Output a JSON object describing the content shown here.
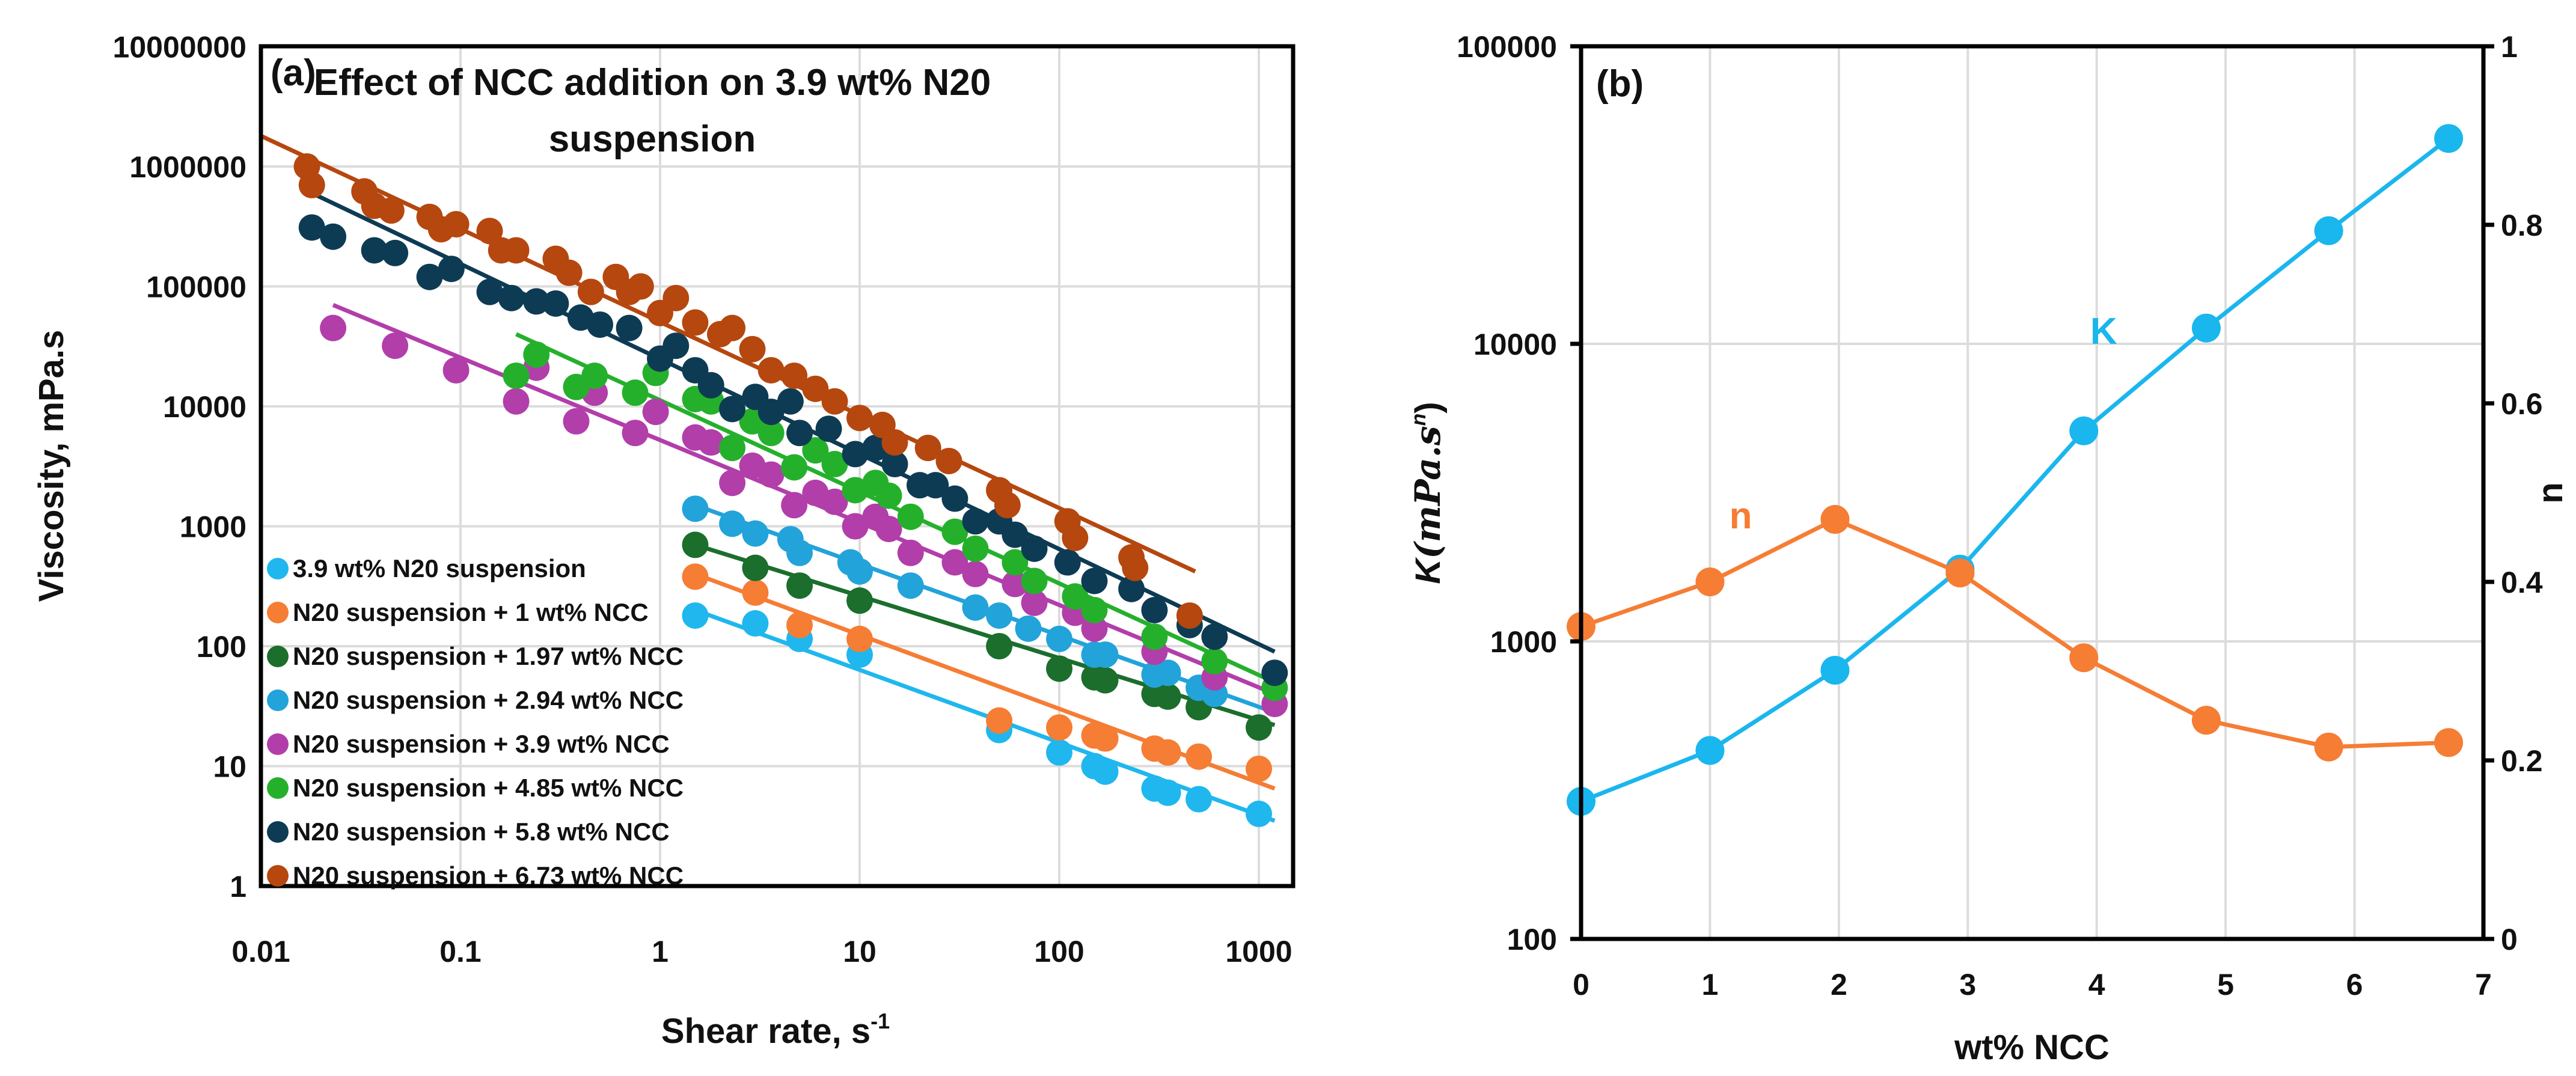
{
  "chart_data": [
    {
      "type": "scatter",
      "panel_label": "(a)",
      "title": [
        "Effect of NCC addition on 3.9 wt% N20",
        "suspension"
      ],
      "xlabel": "Shear rate, s",
      "xlabel_sup": "-1",
      "ylabel": "Viscosity, mPa.s",
      "xscale": "log",
      "yscale": "log",
      "xlim": [
        0.01,
        1500
      ],
      "ylim": [
        1,
        10000000
      ],
      "xticks": [
        "0.01",
        "0.1",
        "1",
        "10",
        "100",
        "1000"
      ],
      "xtick_values": [
        0.01,
        0.1,
        1,
        10,
        100,
        1000
      ],
      "yticks": [
        "1",
        "10",
        "100",
        "1000",
        "10000",
        "100000",
        "1000000",
        "10000000"
      ],
      "ytick_values": [
        1,
        10,
        100,
        1000,
        10000,
        100000,
        1000000,
        10000000
      ],
      "grid": true,
      "legend_position": "bottom-left",
      "series": [
        {
          "name": "3.9 wt% N20 suspension",
          "color": "#1fb7ee",
          "x": [
            1.5,
            3,
            5,
            10,
            50,
            100,
            150,
            170,
            300,
            350,
            500,
            1000
          ],
          "y": [
            180,
            155,
            115,
            85,
            20,
            13,
            10,
            9,
            6.5,
            6,
            5.3,
            4
          ],
          "fit": [
            [
              1.5,
              200
            ],
            [
              1200,
              3.5
            ]
          ]
        },
        {
          "name": "N20 suspension + 1 wt% NCC",
          "color": "#f57d34",
          "x": [
            1.5,
            3,
            5,
            10,
            50,
            100,
            150,
            170,
            300,
            350,
            500,
            1000
          ],
          "y": [
            380,
            280,
            150,
            115,
            24,
            21,
            18,
            17,
            14,
            13,
            12,
            9.5
          ],
          "fit": [
            [
              1.5,
              400
            ],
            [
              1200,
              6.5
            ]
          ]
        },
        {
          "name": "N20 suspension + 1.97 wt% NCC",
          "color": "#1b6e2c",
          "x": [
            1.5,
            3,
            5,
            10,
            50,
            100,
            150,
            170,
            300,
            350,
            500,
            1000
          ],
          "y": [
            700,
            450,
            320,
            240,
            100,
            65,
            55,
            52,
            40,
            38,
            31,
            21
          ],
          "fit": [
            [
              1.5,
              700
            ],
            [
              1200,
              22
            ]
          ]
        },
        {
          "name": "N20 suspension + 2.94 wt% NCC",
          "color": "#22a3da",
          "x": [
            1.5,
            2.3,
            3,
            4.5,
            5,
            9,
            10,
            18,
            38,
            50,
            70,
            100,
            150,
            170,
            300,
            350,
            500,
            600
          ],
          "y": [
            1400,
            1050,
            870,
            780,
            600,
            500,
            420,
            320,
            210,
            180,
            140,
            115,
            85,
            85,
            58,
            60,
            45,
            40
          ],
          "fit": [
            [
              1.5,
              1500
            ],
            [
              1200,
              28
            ]
          ]
        },
        {
          "name": "N20 suspension + 3.9 wt% NCC",
          "color": "#b23eaa",
          "x": [
            0.023,
            0.047,
            0.095,
            0.19,
            0.24,
            0.38,
            0.47,
            0.75,
            0.95,
            1.5,
            1.8,
            2.3,
            2.9,
            3.6,
            4.7,
            6,
            7.5,
            9.5,
            12,
            14,
            18,
            30,
            38,
            60,
            75,
            120,
            150,
            300,
            600,
            1200
          ],
          "y": [
            45000,
            32000,
            20000,
            11000,
            21000,
            7500,
            13000,
            6000,
            9000,
            5500,
            5000,
            2300,
            3200,
            2700,
            1500,
            1900,
            1600,
            1000,
            1200,
            950,
            600,
            500,
            400,
            330,
            230,
            190,
            140,
            90,
            55,
            33
          ],
          "fit": [
            [
              0.023,
              70000
            ],
            [
              1200,
              40
            ]
          ]
        },
        {
          "name": "N20 suspension + 4.85 wt% NCC",
          "color": "#25b02c",
          "x": [
            0.19,
            0.24,
            0.38,
            0.47,
            0.75,
            0.95,
            1.5,
            1.8,
            2.3,
            2.9,
            3.6,
            4.7,
            6,
            7.5,
            9.5,
            12,
            14,
            18,
            30,
            38,
            60,
            75,
            120,
            150,
            300,
            600,
            1200
          ],
          "y": [
            18000,
            27000,
            14500,
            18000,
            13000,
            19000,
            11500,
            11000,
            4500,
            7500,
            6000,
            3100,
            4300,
            3300,
            2000,
            2300,
            1800,
            1200,
            900,
            650,
            500,
            350,
            260,
            200,
            120,
            75,
            45
          ],
          "fit": [
            [
              0.19,
              40000
            ],
            [
              1200,
              50
            ]
          ]
        },
        {
          "name": "N20 suspension + 5.8 wt% NCC",
          "color": "#0e3b54",
          "x": [
            0.018,
            0.023,
            0.037,
            0.047,
            0.07,
            0.09,
            0.14,
            0.18,
            0.24,
            0.3,
            0.4,
            0.5,
            0.7,
            1,
            1.2,
            1.5,
            1.8,
            2.3,
            3,
            3.6,
            4.5,
            5,
            7,
            9.5,
            12,
            15,
            20,
            24,
            30,
            38,
            50,
            60,
            75,
            110,
            150,
            230,
            300,
            450,
            600,
            1200
          ],
          "y": [
            310000,
            260000,
            200000,
            190000,
            120000,
            140000,
            90000,
            80000,
            75000,
            72000,
            55000,
            48000,
            45000,
            25000,
            32000,
            20000,
            15000,
            9500,
            12000,
            9000,
            11000,
            6000,
            6500,
            4000,
            4500,
            3300,
            2200,
            2200,
            1700,
            1100,
            1100,
            850,
            650,
            500,
            350,
            300,
            200,
            150,
            120,
            60
          ],
          "fit": [
            [
              0.018,
              600000
            ],
            [
              1200,
              90
            ]
          ]
        },
        {
          "name": "N20 suspension + 6.73 wt% NCC",
          "color": "#b5470f",
          "x": [
            0.017,
            0.018,
            0.033,
            0.037,
            0.045,
            0.07,
            0.08,
            0.095,
            0.14,
            0.16,
            0.19,
            0.3,
            0.35,
            0.45,
            0.6,
            0.7,
            0.8,
            1,
            1.2,
            1.5,
            2,
            2.3,
            2.9,
            3.6,
            4.7,
            6,
            7.5,
            10,
            13,
            15,
            22,
            28,
            50,
            55,
            110,
            120,
            230,
            240,
            450
          ],
          "y": [
            1000000,
            700000,
            620000,
            470000,
            430000,
            380000,
            300000,
            330000,
            290000,
            200000,
            200000,
            170000,
            130000,
            90000,
            120000,
            90000,
            100000,
            60000,
            80000,
            50000,
            40000,
            45000,
            30000,
            20000,
            18000,
            14000,
            11000,
            8000,
            7000,
            5000,
            4500,
            3500,
            2000,
            1500,
            1100,
            800,
            550,
            450,
            180
          ],
          "fit": [
            [
              0.01,
              1800000
            ],
            [
              480,
              420
            ]
          ]
        }
      ]
    },
    {
      "type": "line",
      "panel_label": "(b)",
      "xlabel": "wt% NCC",
      "ylabel": "K",
      "ylabel_unit": "(mPa.s",
      "ylabel_sup": "n",
      "ylabel_close": ")",
      "y2label": "n",
      "xlim": [
        0,
        7
      ],
      "xticks": [
        "0",
        "1",
        "2",
        "3",
        "4",
        "5",
        "6",
        "7"
      ],
      "ylim": [
        100,
        100000
      ],
      "yscale": "log",
      "yticks": [
        "100",
        "1000",
        "10000",
        "100000"
      ],
      "y2lim": [
        0,
        1
      ],
      "y2ticks": [
        "0",
        "0.2",
        "0.4",
        "0.6",
        "0.8",
        "1"
      ],
      "grid": true,
      "series": [
        {
          "name": "K",
          "axis": "left",
          "color": "#1ab6ee",
          "label_at": [
            3.95,
            10000
          ],
          "x": [
            0,
            1,
            1.97,
            2.94,
            3.9,
            4.85,
            5.8,
            6.73
          ],
          "y": [
            290,
            430,
            800,
            1750,
            5100,
            11300,
            24000,
            49000
          ]
        },
        {
          "name": "n",
          "axis": "right",
          "color": "#f57d34",
          "label_at": [
            1.15,
            0.46
          ],
          "x": [
            0,
            1,
            1.97,
            2.94,
            3.9,
            4.85,
            5.8,
            6.73
          ],
          "y": [
            0.35,
            0.4,
            0.47,
            0.41,
            0.315,
            0.245,
            0.215,
            0.22
          ]
        }
      ]
    }
  ]
}
